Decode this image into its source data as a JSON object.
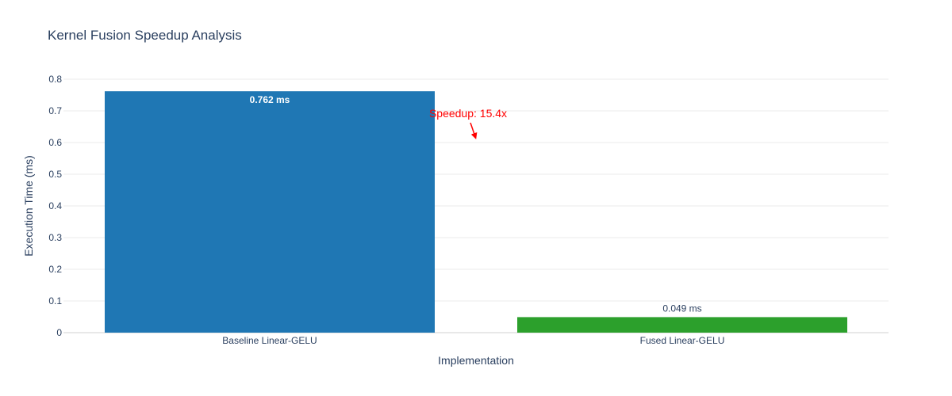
{
  "chart_data": {
    "type": "bar",
    "title": "Kernel Fusion Speedup Analysis",
    "xlabel": "Implementation",
    "ylabel": "Execution Time (ms)",
    "categories": [
      "Baseline Linear-GELU",
      "Fused Linear-GELU"
    ],
    "values": [
      0.762,
      0.049
    ],
    "value_labels": [
      "0.762 ms",
      "0.049 ms"
    ],
    "bar_colors": [
      "#1f77b4",
      "#2ca02c"
    ],
    "ylim": [
      0,
      0.8
    ],
    "yticks": [
      0,
      0.1,
      0.2,
      0.3,
      0.4,
      0.5,
      0.6,
      0.7,
      0.8
    ],
    "ytick_labels": [
      "0",
      "0.1",
      "0.2",
      "0.3",
      "0.4",
      "0.5",
      "0.6",
      "0.7",
      "0.8"
    ],
    "grid": true,
    "annotation": {
      "text": "Speedup: 15.4x",
      "color": "#ff0000",
      "arrow_target_value": 0.61
    }
  }
}
